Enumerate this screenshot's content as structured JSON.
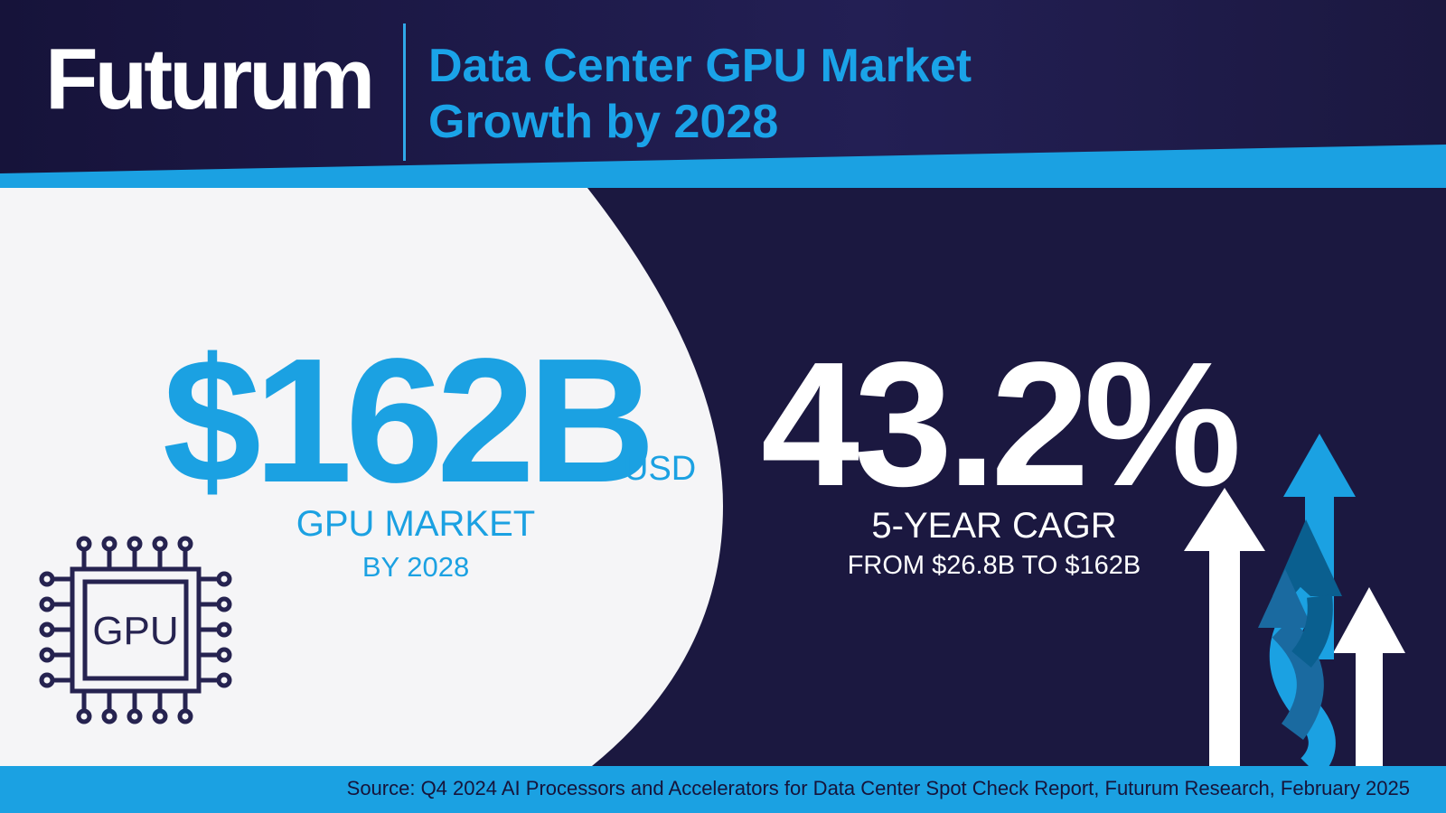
{
  "brand": {
    "logo_text": "Futurum"
  },
  "header": {
    "title_line1": "Data Center GPU Market",
    "title_line2": "Growth by 2028"
  },
  "market": {
    "value": "$162B",
    "unit": "USD",
    "label": "GPU MARKET",
    "year_label": "BY 2028"
  },
  "chip": {
    "label": "GPU",
    "icon": "gpu-chip-icon"
  },
  "cagr": {
    "value": "43.2%",
    "label": "5-YEAR CAGR",
    "range": "FROM $26.8B TO $162B"
  },
  "decoration": {
    "icon": "growth-arrows-icon"
  },
  "footer": {
    "source": "Source: Q4 2024 AI Processors and Accelerators for Data Center Spot Check Report, Futurum Research, February 2025"
  },
  "colors": {
    "navy": "#1b1840",
    "accent_blue": "#1ba1e2",
    "panel_light": "#f5f5f7",
    "white": "#ffffff"
  }
}
